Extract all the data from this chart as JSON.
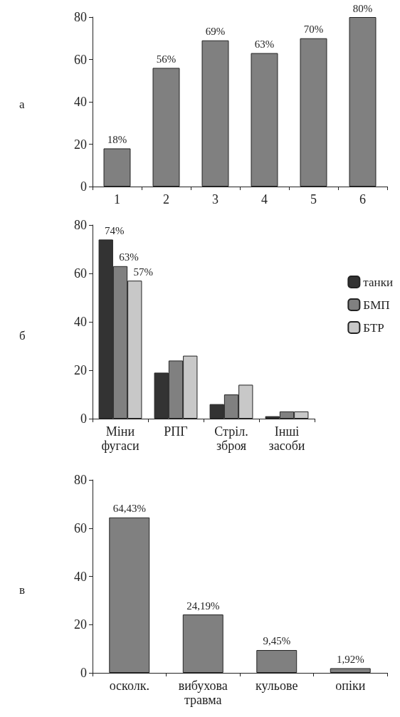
{
  "chart_data": [
    {
      "type": "bar",
      "title": "а",
      "categories": [
        "1",
        "2",
        "3",
        "4",
        "5",
        "6"
      ],
      "values": [
        18,
        56,
        69,
        63,
        70,
        80
      ],
      "value_labels": [
        "18%",
        "56%",
        "69%",
        "63%",
        "70%",
        "80%"
      ],
      "color": "#808080",
      "ylim": [
        0,
        80
      ],
      "yticks": [
        0,
        20,
        40,
        60,
        80
      ],
      "grid": false,
      "legend": false
    },
    {
      "type": "bar",
      "title": "б",
      "categories": [
        "Міни\nфугаси",
        "РПГ",
        "Стріл.\nзброя",
        "Інші\nзасоби"
      ],
      "series": [
        {
          "name": "танки",
          "color": "#333333",
          "values": [
            74,
            19,
            6,
            1
          ],
          "value_labels": [
            "74%",
            null,
            null,
            null
          ]
        },
        {
          "name": "БМП",
          "color": "#808080",
          "values": [
            63,
            24,
            10,
            3
          ],
          "value_labels": [
            "63%",
            null,
            null,
            null
          ]
        },
        {
          "name": "БТР",
          "color": "#c8c8c8",
          "values": [
            57,
            26,
            14,
            3
          ],
          "value_labels": [
            "57%",
            null,
            null,
            null
          ]
        }
      ],
      "ylim": [
        0,
        80
      ],
      "yticks": [
        0,
        20,
        40,
        60,
        80
      ],
      "grid": false,
      "legend": "right"
    },
    {
      "type": "bar",
      "title": "в",
      "categories": [
        "осколк.",
        "вибухова\nтравма",
        "кульове",
        "опіки"
      ],
      "values": [
        64.43,
        24.19,
        9.45,
        1.92
      ],
      "value_labels": [
        "64,43%",
        "24,19%",
        "9,45%",
        "1,92%"
      ],
      "color": "#808080",
      "ylim": [
        0,
        80
      ],
      "yticks": [
        0,
        20,
        40,
        60,
        80
      ],
      "grid": false,
      "legend": false
    }
  ]
}
